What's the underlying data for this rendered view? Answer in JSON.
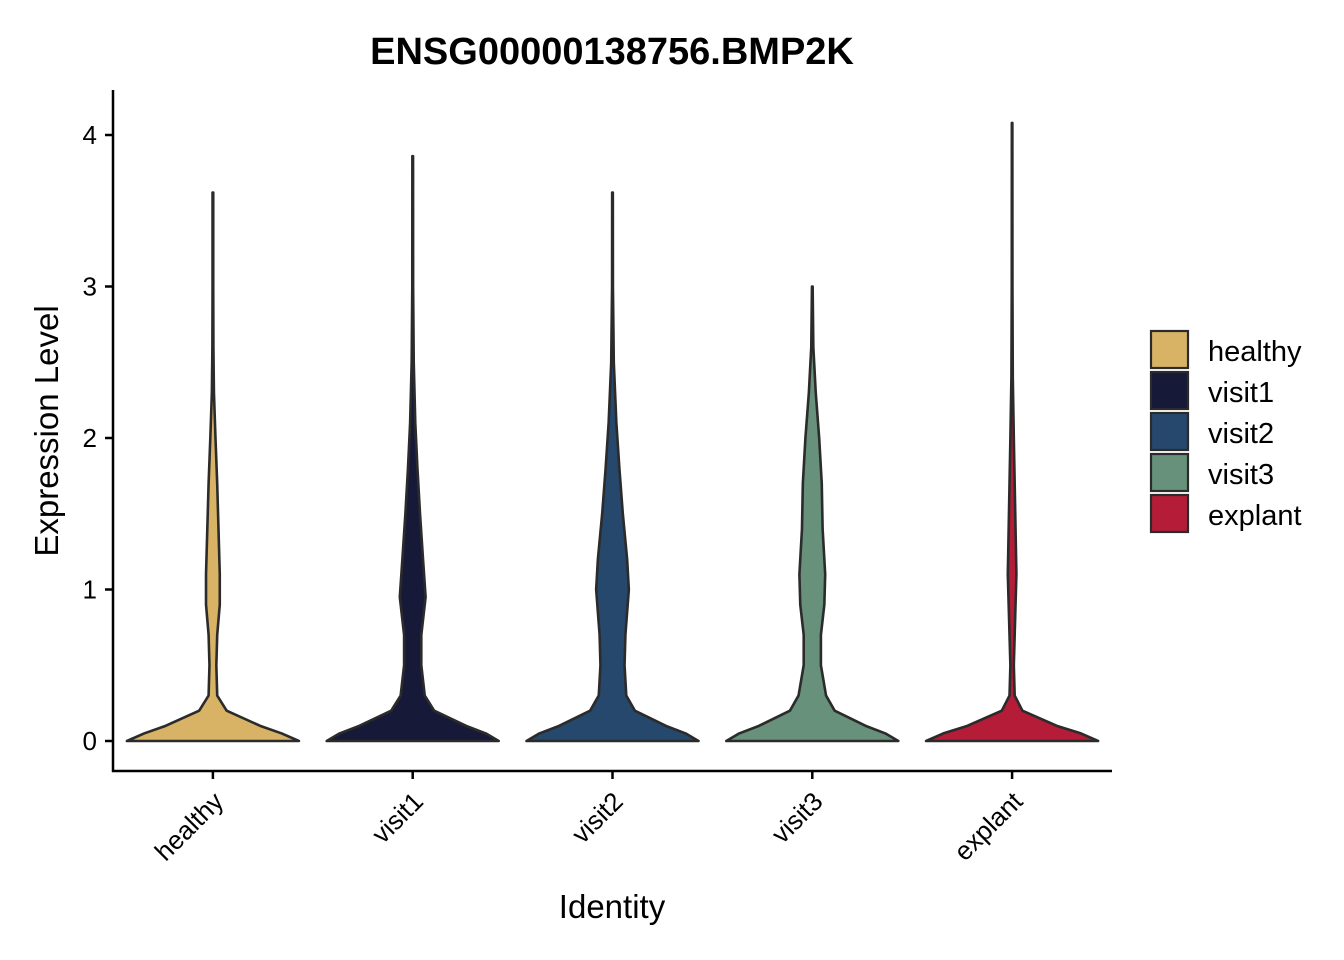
{
  "chart_data": {
    "type": "violin",
    "title": "ENSG00000138756.BMP2K",
    "xlabel": "Identity",
    "ylabel": "Expression Level",
    "ylim": [
      -0.2,
      4.3
    ],
    "yticks": [
      0,
      1,
      2,
      3,
      4
    ],
    "grid": false,
    "legend_position": "right",
    "categories": [
      "healthy",
      "visit1",
      "visit2",
      "visit3",
      "explant"
    ],
    "series": [
      {
        "name": "healthy",
        "color": "#D8B365",
        "max": 3.62,
        "density": [
          [
            0,
            1.0
          ],
          [
            0.05,
            0.8
          ],
          [
            0.1,
            0.55
          ],
          [
            0.2,
            0.16
          ],
          [
            0.3,
            0.05
          ],
          [
            0.5,
            0.04
          ],
          [
            0.7,
            0.05
          ],
          [
            0.9,
            0.08
          ],
          [
            1.1,
            0.08
          ],
          [
            1.4,
            0.065
          ],
          [
            1.7,
            0.05
          ],
          [
            2.0,
            0.03
          ],
          [
            2.3,
            0.012
          ],
          [
            2.6,
            0.006
          ],
          [
            3.0,
            0.004
          ],
          [
            3.62,
            0.004
          ]
        ]
      },
      {
        "name": "visit1",
        "color": "#161A38",
        "max": 3.86,
        "density": [
          [
            0,
            1.0
          ],
          [
            0.05,
            0.85
          ],
          [
            0.1,
            0.62
          ],
          [
            0.2,
            0.25
          ],
          [
            0.3,
            0.14
          ],
          [
            0.5,
            0.1
          ],
          [
            0.7,
            0.1
          ],
          [
            0.95,
            0.15
          ],
          [
            1.2,
            0.12
          ],
          [
            1.5,
            0.085
          ],
          [
            1.8,
            0.055
          ],
          [
            2.1,
            0.03
          ],
          [
            2.5,
            0.012
          ],
          [
            3.0,
            0.005
          ],
          [
            3.86,
            0.004
          ]
        ]
      },
      {
        "name": "visit2",
        "color": "#26486C",
        "max": 3.62,
        "density": [
          [
            0,
            1.0
          ],
          [
            0.05,
            0.85
          ],
          [
            0.1,
            0.62
          ],
          [
            0.2,
            0.26
          ],
          [
            0.3,
            0.16
          ],
          [
            0.5,
            0.14
          ],
          [
            0.7,
            0.15
          ],
          [
            1.0,
            0.19
          ],
          [
            1.2,
            0.17
          ],
          [
            1.5,
            0.12
          ],
          [
            1.8,
            0.08
          ],
          [
            2.1,
            0.045
          ],
          [
            2.5,
            0.015
          ],
          [
            3.0,
            0.005
          ],
          [
            3.62,
            0.004
          ]
        ]
      },
      {
        "name": "visit3",
        "color": "#67917B",
        "max": 3.0,
        "density": [
          [
            0,
            1.0
          ],
          [
            0.05,
            0.85
          ],
          [
            0.1,
            0.62
          ],
          [
            0.2,
            0.26
          ],
          [
            0.3,
            0.16
          ],
          [
            0.5,
            0.1
          ],
          [
            0.7,
            0.1
          ],
          [
            0.9,
            0.14
          ],
          [
            1.1,
            0.15
          ],
          [
            1.4,
            0.12
          ],
          [
            1.7,
            0.11
          ],
          [
            2.0,
            0.08
          ],
          [
            2.3,
            0.04
          ],
          [
            2.6,
            0.012
          ],
          [
            3.0,
            0.004
          ]
        ]
      },
      {
        "name": "explant",
        "color": "#B41C37",
        "max": 4.08,
        "density": [
          [
            0,
            1.0
          ],
          [
            0.05,
            0.8
          ],
          [
            0.1,
            0.52
          ],
          [
            0.2,
            0.12
          ],
          [
            0.3,
            0.03
          ],
          [
            0.5,
            0.02
          ],
          [
            0.8,
            0.035
          ],
          [
            1.1,
            0.05
          ],
          [
            1.4,
            0.04
          ],
          [
            1.7,
            0.03
          ],
          [
            2.0,
            0.02
          ],
          [
            2.4,
            0.008
          ],
          [
            3.0,
            0.004
          ],
          [
            4.08,
            0.003
          ]
        ]
      }
    ]
  }
}
